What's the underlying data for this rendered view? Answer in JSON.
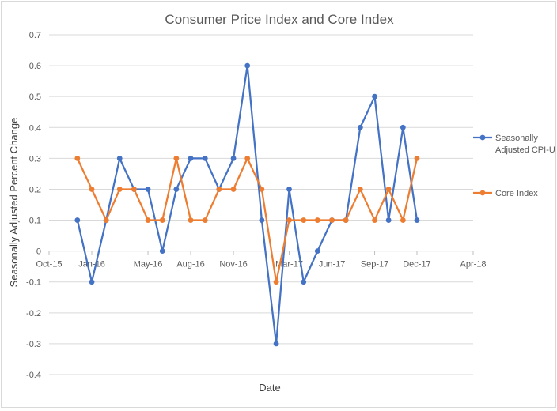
{
  "chart_data": {
    "type": "line",
    "title": "Consumer Price Index and Core Index",
    "xlabel": "Date",
    "ylabel": "Seasonally Adjusted Percent Change",
    "ylim": [
      -0.4,
      0.7
    ],
    "yticks": [
      "0.7",
      "0.6",
      "0.5",
      "0.4",
      "0.3",
      "0.2",
      "0.1",
      "0",
      "-0.1",
      "-0.2",
      "-0.3",
      "-0.4"
    ],
    "xlim": [
      "2015-10-01",
      "2018-04-01"
    ],
    "xticks": [
      {
        "label": "Oct-15",
        "date": "2015-10-01"
      },
      {
        "label": "Jan-16",
        "date": "2016-01-01"
      },
      {
        "label": "May-16",
        "date": "2016-05-01"
      },
      {
        "label": "Aug-16",
        "date": "2016-08-01"
      },
      {
        "label": "Nov-16",
        "date": "2016-11-01"
      },
      {
        "label": "Mar-17",
        "date": "2017-03-01"
      },
      {
        "label": "Jun-17",
        "date": "2017-06-01"
      },
      {
        "label": "Sep-17",
        "date": "2017-09-01"
      },
      {
        "label": "Dec-17",
        "date": "2017-12-01"
      },
      {
        "label": "Apr-18",
        "date": "2018-04-01"
      }
    ],
    "x": [
      "2015-12-01",
      "2016-01-01",
      "2016-02-01",
      "2016-03-01",
      "2016-04-01",
      "2016-05-01",
      "2016-06-01",
      "2016-07-01",
      "2016-08-01",
      "2016-09-01",
      "2016-10-01",
      "2016-11-01",
      "2016-12-01",
      "2017-01-01",
      "2017-02-01",
      "2017-03-01",
      "2017-04-01",
      "2017-05-01",
      "2017-06-01",
      "2017-07-01",
      "2017-08-01",
      "2017-09-01",
      "2017-10-01",
      "2017-11-01",
      "2017-12-01"
    ],
    "series": [
      {
        "name": "Seasonally Adjusted CPI-U",
        "color": "#4472c4",
        "values": [
          0.1,
          -0.1,
          0.1,
          0.3,
          0.2,
          0.2,
          0.0,
          0.2,
          0.3,
          0.3,
          0.2,
          0.3,
          0.6,
          0.1,
          -0.3,
          0.2,
          -0.1,
          0.0,
          0.1,
          0.1,
          0.4,
          0.5,
          0.1,
          0.4,
          0.1
        ]
      },
      {
        "name": "Core Index",
        "color": "#ed7d31",
        "values": [
          0.3,
          0.2,
          0.1,
          0.2,
          0.2,
          0.1,
          0.1,
          0.3,
          0.1,
          0.1,
          0.2,
          0.2,
          0.3,
          0.2,
          -0.1,
          0.1,
          0.1,
          0.1,
          0.1,
          0.1,
          0.2,
          0.1,
          0.2,
          0.1,
          0.3
        ]
      }
    ],
    "legend": {
      "position": "right",
      "entries": [
        {
          "lines": [
            "Seasonally",
            "Adjusted CPI-U"
          ]
        },
        {
          "lines": [
            "Core Index"
          ]
        }
      ]
    },
    "grid": true
  }
}
